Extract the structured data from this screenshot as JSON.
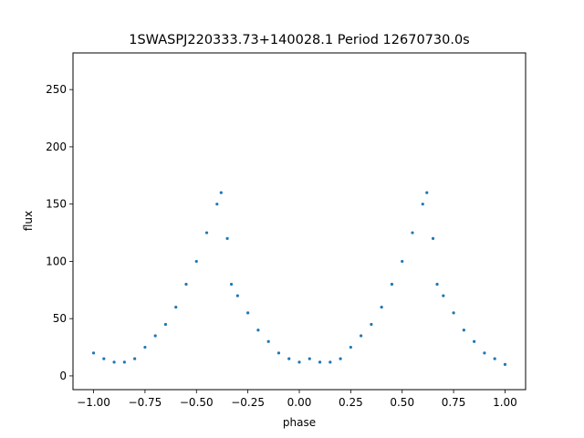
{
  "chart_data": {
    "type": "scatter",
    "title": "1SWASPJ220333.73+140028.1 Period 12670730.0s",
    "xlabel": "phase",
    "ylabel": "flux",
    "xlim": [
      -1.1,
      1.1
    ],
    "ylim": [
      -12,
      282
    ],
    "x_ticks": [
      -1.0,
      -0.75,
      -0.5,
      -0.25,
      0.0,
      0.25,
      0.5,
      0.75,
      1.0
    ],
    "x_tick_labels": [
      "−1.00",
      "−0.75",
      "−0.50",
      "−0.25",
      "0.00",
      "0.25",
      "0.50",
      "0.75",
      "1.00"
    ],
    "y_ticks": [
      0,
      50,
      100,
      150,
      200,
      250
    ],
    "y_tick_labels": [
      "0",
      "50",
      "100",
      "150",
      "200",
      "250"
    ],
    "grid": false,
    "marker_color": "#1f77b4",
    "series": [
      {
        "x": [
          -1.0,
          -0.95,
          -0.9,
          -0.85,
          -0.8,
          -0.75,
          -0.7,
          -0.65,
          -0.6,
          -0.55,
          -0.5,
          -0.45,
          -0.4,
          -0.38,
          -0.35,
          -0.33,
          -0.3,
          -0.25,
          -0.2,
          -0.15,
          -0.1,
          -0.05,
          0.0,
          0.05,
          0.1,
          0.15,
          0.2,
          0.25,
          0.3,
          0.35,
          0.4,
          0.45,
          0.5,
          0.55,
          0.6,
          0.62,
          0.65,
          0.67,
          0.7,
          0.75,
          0.8,
          0.85,
          0.9,
          0.95,
          1.0
        ],
        "y": [
          20,
          15,
          12,
          12,
          15,
          25,
          35,
          45,
          60,
          80,
          100,
          125,
          150,
          160,
          120,
          80,
          70,
          55,
          40,
          30,
          20,
          15,
          12,
          15,
          12,
          12,
          15,
          25,
          35,
          45,
          60,
          80,
          100,
          125,
          150,
          160,
          120,
          80,
          70,
          55,
          40,
          30,
          20,
          15,
          10
        ]
      }
    ]
  }
}
